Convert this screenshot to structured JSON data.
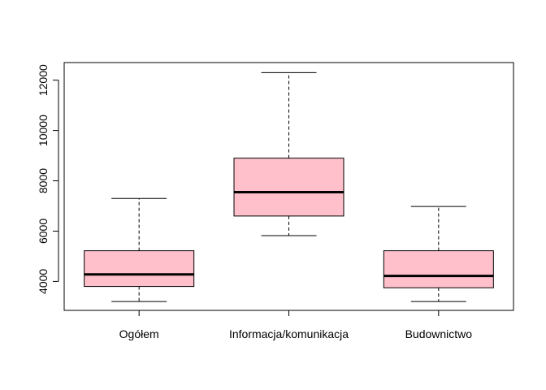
{
  "chart_data": {
    "type": "boxplot",
    "title": "",
    "xlabel": "",
    "ylabel": "",
    "categories": [
      "Ogółem",
      "Informacja/komunikacja",
      "Budownictwo"
    ],
    "boxes": [
      {
        "category": "Ogółem",
        "whisker_low": 3200,
        "q1": 3800,
        "median": 4280,
        "q3": 5220,
        "whisker_high": 7300
      },
      {
        "category": "Informacja/komunikacja",
        "whisker_low": 5820,
        "q1": 6600,
        "median": 7550,
        "q3": 8900,
        "whisker_high": 12300
      },
      {
        "category": "Budownictwo",
        "whisker_low": 3200,
        "q1": 3750,
        "median": 4220,
        "q3": 5220,
        "whisker_high": 6980
      }
    ],
    "ylim": [
      2850,
      12700
    ],
    "yticks": [
      4000,
      6000,
      8000,
      10000,
      12000
    ],
    "grid": false,
    "legend": "none",
    "box_fill": "#ffc0cb",
    "line_color": "#000000"
  }
}
